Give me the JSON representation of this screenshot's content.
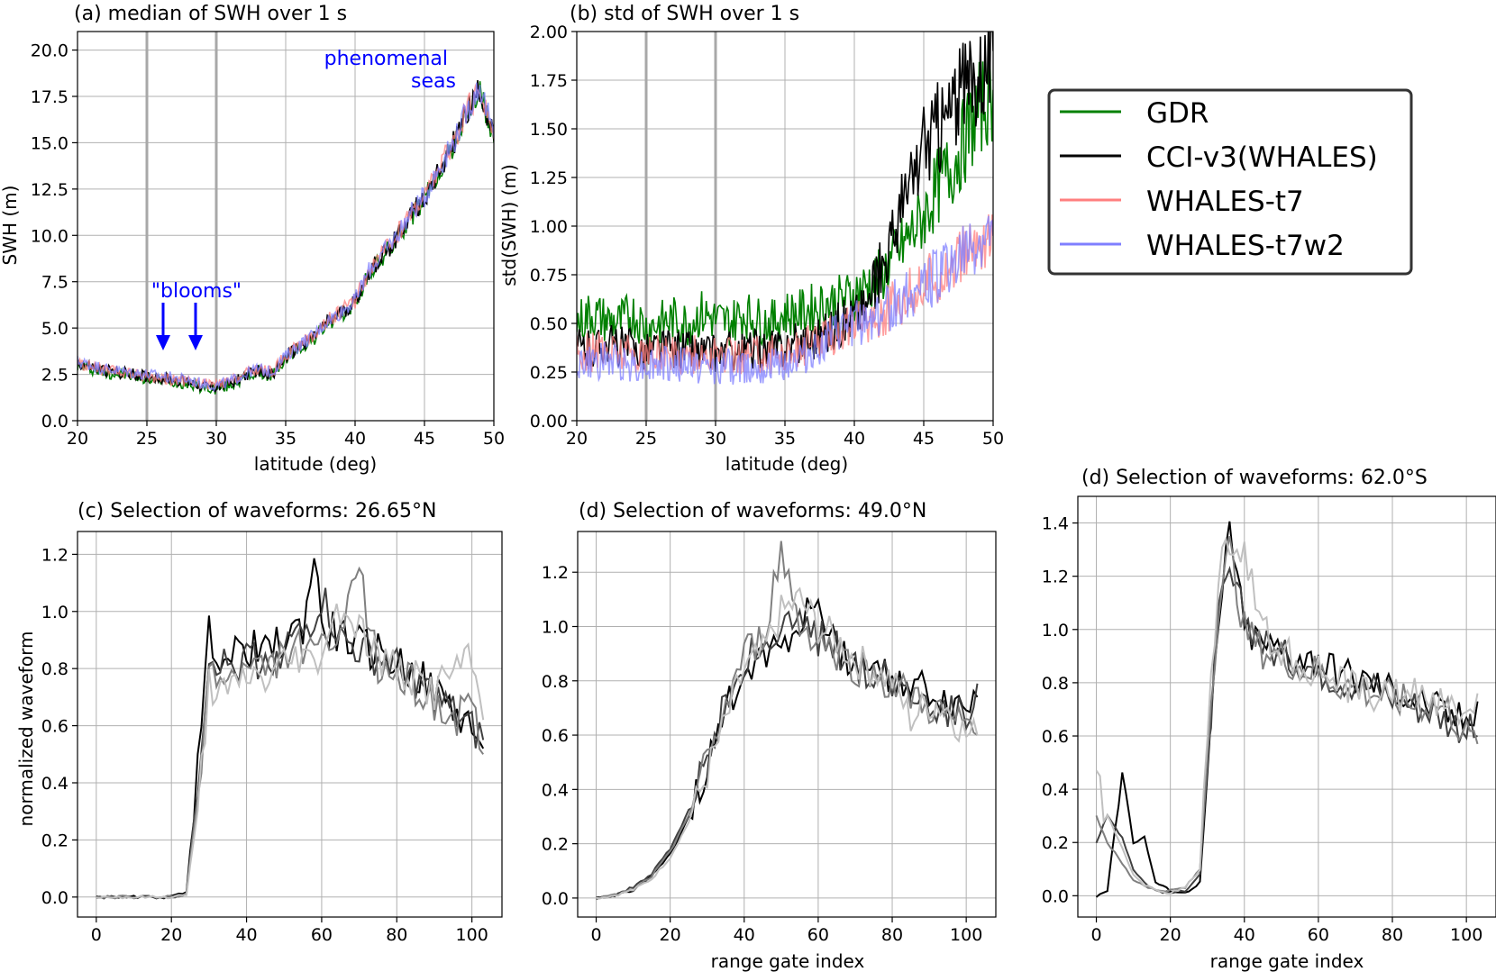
{
  "figure": {
    "panels": [
      {
        "id": "a",
        "title": "(a)        median of SWH over 1 s",
        "xlabel": "latitude (deg)",
        "ylabel": "SWH (m)"
      },
      {
        "id": "b",
        "title": "(b)        std of SWH over 1 s",
        "xlabel": "latitude (deg)",
        "ylabel": "std(SWH) (m)"
      },
      {
        "id": "c",
        "title": "(c) Selection of waveforms: 26.65°N",
        "xlabel": "",
        "ylabel": "normalized waveform"
      },
      {
        "id": "d1",
        "title": "(d) Selection of waveforms: 49.0°N",
        "xlabel": "range gate index",
        "ylabel": ""
      },
      {
        "id": "d2",
        "title": "(d) Selection of waveforms: 62.0°S",
        "xlabel": "range gate index",
        "ylabel": ""
      }
    ],
    "annotations": {
      "blooms": "\"blooms\"",
      "phenomenal_line1": "phenomenal",
      "phenomenal_line2": "seas"
    },
    "legend": [
      {
        "label": "GDR",
        "color": "#008000"
      },
      {
        "label": "CCI-v3(WHALES)",
        "color": "#000000"
      },
      {
        "label": "WHALES-t7",
        "color": "#ff7f7f"
      },
      {
        "label": "WHALES-t7w2",
        "color": "#7f7fff"
      }
    ]
  },
  "chart_data": [
    {
      "type": "line",
      "panel": "a",
      "title": "median of SWH over 1 s",
      "xlabel": "latitude (deg)",
      "ylabel": "SWH (m)",
      "xlim": [
        20,
        50
      ],
      "ylim": [
        0,
        21
      ],
      "grid": true,
      "xticks": [
        20,
        25,
        30,
        35,
        40,
        45,
        50
      ],
      "xtick_labels": [
        "20",
        "25",
        "30",
        "35",
        "40",
        "45",
        "50"
      ],
      "yticks": [
        0,
        2.5,
        5,
        7.5,
        10,
        12.5,
        15,
        17.5,
        20
      ],
      "ytick_labels": [
        "0.0",
        "2.5",
        "5.0",
        "7.5",
        "10.0",
        "12.5",
        "15.0",
        "17.5",
        "20.0"
      ],
      "vertical_lines": [
        25,
        30
      ],
      "x": [
        20,
        21,
        22,
        23,
        24,
        25,
        26,
        27,
        28,
        29,
        30,
        31,
        32,
        33,
        34,
        35,
        36,
        37,
        38,
        39,
        40,
        41,
        42,
        43,
        44,
        45,
        46,
        47,
        48,
        49,
        50
      ],
      "series": [
        {
          "name": "GDR",
          "color": "#008000",
          "values": [
            3.0,
            2.8,
            2.6,
            2.5,
            2.4,
            2.3,
            2.2,
            2.1,
            2.0,
            1.8,
            1.7,
            1.9,
            2.3,
            2.6,
            2.4,
            3.3,
            3.9,
            4.4,
            5.2,
            5.7,
            6.3,
            7.9,
            8.8,
            9.8,
            11.0,
            11.9,
            13.4,
            14.7,
            16.4,
            17.8,
            15.0
          ]
        },
        {
          "name": "CCI-v3(WHALES)",
          "color": "#000000",
          "values": [
            3.1,
            2.9,
            2.7,
            2.6,
            2.5,
            2.4,
            2.3,
            2.2,
            2.1,
            1.9,
            1.8,
            2.0,
            2.4,
            2.7,
            2.5,
            3.4,
            4.0,
            4.5,
            5.3,
            5.8,
            6.4,
            8.0,
            8.9,
            9.9,
            11.1,
            12.0,
            13.5,
            14.8,
            16.5,
            17.9,
            15.1
          ]
        },
        {
          "name": "WHALES-t7",
          "color": "#ff7f7f",
          "values": [
            3.1,
            2.9,
            2.7,
            2.6,
            2.5,
            2.4,
            2.3,
            2.2,
            2.1,
            2.0,
            1.9,
            2.1,
            2.5,
            2.8,
            2.6,
            3.5,
            4.1,
            4.6,
            5.4,
            5.9,
            6.5,
            8.1,
            9.0,
            10.0,
            11.2,
            12.1,
            13.6,
            14.9,
            16.6,
            18.0,
            15.2
          ]
        },
        {
          "name": "WHALES-t7w2",
          "color": "#7f7fff",
          "values": [
            3.2,
            3.0,
            2.8,
            2.7,
            2.6,
            2.5,
            2.4,
            2.3,
            2.2,
            2.0,
            1.9,
            2.1,
            2.5,
            2.8,
            2.6,
            3.5,
            4.1,
            4.6,
            5.4,
            5.9,
            6.5,
            8.1,
            9.0,
            10.0,
            11.2,
            12.1,
            13.6,
            14.9,
            16.6,
            18.1,
            15.3
          ]
        }
      ]
    },
    {
      "type": "line",
      "panel": "b",
      "title": "std of SWH over 1 s",
      "xlabel": "latitude (deg)",
      "ylabel": "std(SWH) (m)",
      "xlim": [
        20,
        50
      ],
      "ylim": [
        0,
        2
      ],
      "grid": true,
      "xticks": [
        20,
        25,
        30,
        35,
        40,
        45,
        50
      ],
      "xtick_labels": [
        "20",
        "25",
        "30",
        "35",
        "40",
        "45",
        "50"
      ],
      "yticks": [
        0,
        0.25,
        0.5,
        0.75,
        1,
        1.25,
        1.5,
        1.75,
        2
      ],
      "ytick_labels": [
        "0.00",
        "0.25",
        "0.50",
        "0.75",
        "1.00",
        "1.25",
        "1.50",
        "1.75",
        "2.00"
      ],
      "vertical_lines": [
        25,
        30
      ],
      "x": [
        20,
        21,
        22,
        23,
        24,
        25,
        26,
        27,
        28,
        29,
        30,
        31,
        32,
        33,
        34,
        35,
        36,
        37,
        38,
        39,
        40,
        41,
        42,
        43,
        44,
        45,
        46,
        47,
        48,
        49,
        50
      ],
      "series": [
        {
          "name": "GDR",
          "color": "#008000",
          "values": [
            0.5,
            0.55,
            0.52,
            0.5,
            0.55,
            0.48,
            0.5,
            0.52,
            0.5,
            0.55,
            0.52,
            0.5,
            0.55,
            0.52,
            0.5,
            0.55,
            0.55,
            0.58,
            0.6,
            0.62,
            0.65,
            0.7,
            0.75,
            0.85,
            0.95,
            1.05,
            1.2,
            1.3,
            1.45,
            1.6,
            1.7
          ]
        },
        {
          "name": "CCI-v3(WHALES)",
          "color": "#000000",
          "values": [
            0.38,
            0.36,
            0.4,
            0.38,
            0.37,
            0.36,
            0.38,
            0.36,
            0.37,
            0.35,
            0.34,
            0.36,
            0.35,
            0.37,
            0.36,
            0.38,
            0.4,
            0.42,
            0.45,
            0.5,
            0.55,
            0.6,
            0.8,
            1.0,
            1.2,
            1.4,
            1.5,
            1.6,
            1.7,
            1.8,
            1.9
          ]
        },
        {
          "name": "WHALES-t7",
          "color": "#ff7f7f",
          "values": [
            0.36,
            0.35,
            0.37,
            0.36,
            0.35,
            0.34,
            0.35,
            0.34,
            0.35,
            0.33,
            0.33,
            0.34,
            0.33,
            0.35,
            0.34,
            0.35,
            0.37,
            0.4,
            0.43,
            0.47,
            0.5,
            0.52,
            0.55,
            0.6,
            0.65,
            0.7,
            0.75,
            0.8,
            0.85,
            0.9,
            0.95
          ]
        },
        {
          "name": "WHALES-t7w2",
          "color": "#7f7fff",
          "values": [
            0.3,
            0.29,
            0.31,
            0.3,
            0.29,
            0.28,
            0.29,
            0.28,
            0.29,
            0.27,
            0.27,
            0.28,
            0.27,
            0.29,
            0.28,
            0.3,
            0.32,
            0.35,
            0.4,
            0.45,
            0.5,
            0.52,
            0.55,
            0.6,
            0.65,
            0.7,
            0.75,
            0.8,
            0.85,
            0.9,
            0.95
          ]
        }
      ]
    },
    {
      "type": "line",
      "panel": "c",
      "title": "(c) Selection of waveforms: 26.65°N",
      "xlabel": "",
      "ylabel": "normalized waveform",
      "xlim": [
        -5,
        108
      ],
      "ylim": [
        -0.07,
        1.28
      ],
      "grid": true,
      "xticks": [
        0,
        20,
        40,
        60,
        80,
        100
      ],
      "xtick_labels": [
        "0",
        "20",
        "40",
        "60",
        "80",
        "100"
      ],
      "yticks": [
        0,
        0.2,
        0.4,
        0.6,
        0.8,
        1.0,
        1.2
      ],
      "ytick_labels": [
        "0.0",
        "0.2",
        "0.4",
        "0.6",
        "0.8",
        "1.0",
        "1.2"
      ],
      "x": [
        0,
        5,
        10,
        15,
        20,
        24,
        27,
        30,
        35,
        40,
        45,
        50,
        55,
        58,
        60,
        65,
        70,
        75,
        80,
        85,
        90,
        95,
        100,
        103
      ],
      "series": [
        {
          "color": "#000000",
          "values": [
            0,
            0,
            0,
            0,
            0,
            0.02,
            0.45,
            0.92,
            0.82,
            0.88,
            0.85,
            0.9,
            0.95,
            1.2,
            0.95,
            0.92,
            0.88,
            0.86,
            0.82,
            0.78,
            0.72,
            0.66,
            0.6,
            0.52
          ]
        },
        {
          "color": "#404040",
          "values": [
            0,
            0,
            0,
            0,
            0,
            0.01,
            0.4,
            0.85,
            0.8,
            0.84,
            0.82,
            0.88,
            0.92,
            0.98,
            1.05,
            0.9,
            0.86,
            0.83,
            0.8,
            0.76,
            0.7,
            0.64,
            0.58,
            0.55
          ]
        },
        {
          "color": "#808080",
          "values": [
            0,
            0,
            0,
            0,
            0,
            0.01,
            0.35,
            0.8,
            0.75,
            0.8,
            0.78,
            0.85,
            0.88,
            0.82,
            0.9,
            0.88,
            1.15,
            0.8,
            0.78,
            0.74,
            0.68,
            0.62,
            0.66,
            0.5
          ]
        },
        {
          "color": "#c0c0c0",
          "values": [
            0,
            0,
            0,
            0,
            0,
            0.01,
            0.3,
            0.75,
            0.7,
            0.78,
            0.76,
            0.82,
            0.86,
            0.8,
            0.88,
            1.02,
            0.95,
            0.84,
            0.8,
            0.76,
            0.72,
            0.8,
            0.82,
            0.62
          ]
        }
      ]
    },
    {
      "type": "line",
      "panel": "d1",
      "title": "(d) Selection of waveforms: 49.0°N",
      "xlabel": "range gate index",
      "ylabel": "",
      "xlim": [
        -5,
        108
      ],
      "ylim": [
        -0.07,
        1.35
      ],
      "grid": true,
      "xticks": [
        0,
        20,
        40,
        60,
        80,
        100
      ],
      "xtick_labels": [
        "0",
        "20",
        "40",
        "60",
        "80",
        "100"
      ],
      "yticks": [
        0,
        0.2,
        0.4,
        0.6,
        0.8,
        1.0,
        1.2
      ],
      "ytick_labels": [
        "0.0",
        "0.2",
        "0.4",
        "0.6",
        "0.8",
        "1.0",
        "1.2"
      ],
      "x": [
        0,
        5,
        10,
        15,
        20,
        25,
        30,
        35,
        40,
        45,
        50,
        55,
        60,
        65,
        70,
        75,
        80,
        85,
        90,
        95,
        100,
        103
      ],
      "series": [
        {
          "color": "#000000",
          "values": [
            0,
            0.01,
            0.03,
            0.08,
            0.16,
            0.3,
            0.48,
            0.68,
            0.85,
            0.9,
            0.95,
            1.0,
            1.1,
            0.9,
            0.88,
            0.85,
            0.82,
            0.78,
            0.76,
            0.72,
            0.7,
            0.74
          ]
        },
        {
          "color": "#404040",
          "values": [
            0,
            0.01,
            0.04,
            0.09,
            0.18,
            0.32,
            0.52,
            0.72,
            0.88,
            0.92,
            0.98,
            1.02,
            0.96,
            0.92,
            0.86,
            0.82,
            0.8,
            0.76,
            0.72,
            0.7,
            0.68,
            0.79
          ]
        },
        {
          "color": "#808080",
          "values": [
            0,
            0.01,
            0.03,
            0.08,
            0.17,
            0.31,
            0.5,
            0.7,
            0.9,
            0.95,
            1.28,
            1.0,
            0.95,
            0.9,
            0.85,
            0.82,
            0.78,
            0.74,
            0.7,
            0.66,
            0.62,
            0.6
          ]
        },
        {
          "color": "#c0c0c0",
          "values": [
            0,
            0.01,
            0.03,
            0.07,
            0.15,
            0.28,
            0.46,
            0.65,
            0.84,
            0.9,
            1.05,
            1.1,
            1.0,
            0.95,
            0.88,
            0.84,
            0.8,
            0.66,
            0.72,
            0.7,
            0.6,
            0.6
          ]
        }
      ]
    },
    {
      "type": "line",
      "panel": "d2",
      "title": "(d) Selection of waveforms: 62.0°S",
      "xlabel": "range gate index",
      "ylabel": "",
      "xlim": [
        -5,
        108
      ],
      "ylim": [
        -0.08,
        1.5
      ],
      "grid": true,
      "xticks": [
        0,
        20,
        40,
        60,
        80,
        100
      ],
      "xtick_labels": [
        "0",
        "20",
        "40",
        "60",
        "80",
        "100"
      ],
      "yticks": [
        0,
        0.2,
        0.4,
        0.6,
        0.8,
        1.0,
        1.2,
        1.4
      ],
      "ytick_labels": [
        "0.0",
        "0.2",
        "0.4",
        "0.6",
        "0.8",
        "1.0",
        "1.2",
        "1.4"
      ],
      "x": [
        0,
        3,
        7,
        10,
        13,
        16,
        20,
        24,
        28,
        30,
        33,
        36,
        40,
        45,
        50,
        55,
        60,
        65,
        70,
        75,
        80,
        85,
        90,
        95,
        100,
        103
      ],
      "series": [
        {
          "color": "#000000",
          "values": [
            0,
            0.02,
            0.48,
            0.2,
            0.22,
            0.05,
            0.02,
            0.01,
            0.05,
            0.45,
            1.0,
            1.4,
            1.0,
            0.95,
            0.92,
            0.9,
            0.88,
            0.85,
            0.82,
            0.8,
            0.78,
            0.75,
            0.72,
            0.68,
            0.66,
            0.73
          ]
        },
        {
          "color": "#404040",
          "values": [
            0.2,
            0.3,
            0.22,
            0.1,
            0.05,
            0.02,
            0.01,
            0.02,
            0.08,
            0.5,
            1.05,
            1.2,
            1.05,
            0.95,
            0.9,
            0.88,
            0.85,
            0.82,
            0.8,
            0.78,
            0.75,
            0.72,
            0.7,
            0.66,
            0.63,
            0.6
          ]
        },
        {
          "color": "#808080",
          "values": [
            0.3,
            0.2,
            0.12,
            0.06,
            0.04,
            0.02,
            0.02,
            0.03,
            0.1,
            0.55,
            1.1,
            1.3,
            1.0,
            0.92,
            0.9,
            0.86,
            0.84,
            0.8,
            0.78,
            0.76,
            0.74,
            0.72,
            0.72,
            0.7,
            0.6,
            0.57
          ]
        },
        {
          "color": "#c0c0c0",
          "values": [
            0.42,
            0.3,
            0.18,
            0.08,
            0.04,
            0.02,
            0.01,
            0.03,
            0.1,
            0.6,
            1.2,
            1.35,
            1.3,
            1.0,
            0.92,
            0.88,
            0.84,
            0.8,
            0.78,
            0.76,
            0.74,
            0.76,
            0.76,
            0.7,
            0.68,
            0.76
          ]
        }
      ]
    }
  ]
}
